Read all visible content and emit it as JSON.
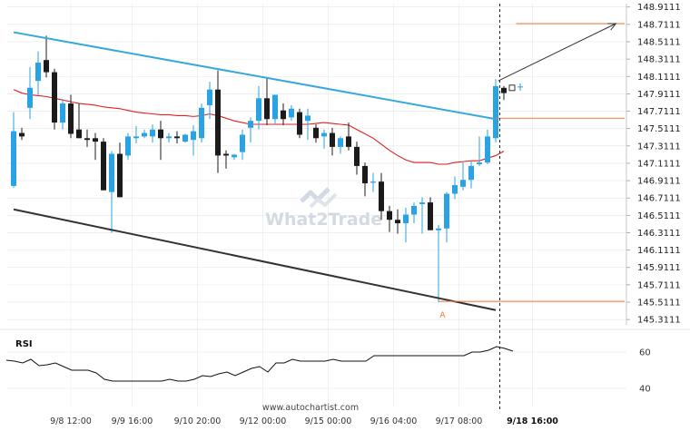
{
  "chart_data": {
    "type": "candlestick",
    "price_axis": {
      "ticks": [
        "148.9111",
        "148.7111",
        "148.5111",
        "148.3111",
        "148.1111",
        "147.9111",
        "147.7111",
        "147.5111",
        "147.3111",
        "147.1111",
        "146.9111",
        "146.7111",
        "146.5111",
        "146.3111",
        "146.1111",
        "145.9111",
        "145.7111",
        "145.5111",
        "145.3111"
      ],
      "ylim": [
        145.25,
        148.95
      ]
    },
    "time_axis": {
      "labels": [
        {
          "text": "9/8 12:00",
          "index": 7
        },
        {
          "text": "9/9 16:00",
          "index": 14.5
        },
        {
          "text": "9/10 20:00",
          "index": 22.5
        },
        {
          "text": "9/12 00:00",
          "index": 30.5
        },
        {
          "text": "9/15 00:00",
          "index": 38.5
        },
        {
          "text": "9/16 04:00",
          "index": 46.5
        },
        {
          "text": "9/17 08:00",
          "index": 54.5
        },
        {
          "text": "9/18 16:00",
          "index": 63.5,
          "bold": true
        }
      ]
    },
    "candles": [
      {
        "o": 146.85,
        "h": 147.7,
        "l": 146.83,
        "c": 147.48
      },
      {
        "o": 147.46,
        "h": 147.52,
        "l": 147.38,
        "c": 147.42
      },
      {
        "o": 147.75,
        "h": 148.22,
        "l": 147.62,
        "c": 147.98
      },
      {
        "o": 148.06,
        "h": 148.4,
        "l": 147.9,
        "c": 148.27
      },
      {
        "o": 148.3,
        "h": 148.58,
        "l": 148.1,
        "c": 148.16
      },
      {
        "o": 148.16,
        "h": 148.2,
        "l": 147.5,
        "c": 147.58
      },
      {
        "o": 147.58,
        "h": 147.85,
        "l": 147.5,
        "c": 147.8
      },
      {
        "o": 147.8,
        "h": 147.9,
        "l": 147.4,
        "c": 147.45
      },
      {
        "o": 147.5,
        "h": 147.8,
        "l": 147.4,
        "c": 147.4
      },
      {
        "o": 147.4,
        "h": 147.5,
        "l": 147.3,
        "c": 147.38
      },
      {
        "o": 147.4,
        "h": 147.46,
        "l": 147.15,
        "c": 147.36
      },
      {
        "o": 147.36,
        "h": 147.4,
        "l": 146.8,
        "c": 146.8
      },
      {
        "o": 146.78,
        "h": 147.25,
        "l": 146.31,
        "c": 147.22
      },
      {
        "o": 147.22,
        "h": 147.35,
        "l": 146.72,
        "c": 146.72
      },
      {
        "o": 147.2,
        "h": 147.46,
        "l": 147.15,
        "c": 147.42
      },
      {
        "o": 147.4,
        "h": 147.54,
        "l": 147.34,
        "c": 147.42
      },
      {
        "o": 147.42,
        "h": 147.5,
        "l": 147.4,
        "c": 147.46
      },
      {
        "o": 147.42,
        "h": 147.56,
        "l": 147.35,
        "c": 147.5
      },
      {
        "o": 147.5,
        "h": 147.6,
        "l": 147.15,
        "c": 147.4
      },
      {
        "o": 147.4,
        "h": 147.46,
        "l": 147.35,
        "c": 147.42
      },
      {
        "o": 147.42,
        "h": 147.48,
        "l": 147.34,
        "c": 147.4
      },
      {
        "o": 147.36,
        "h": 147.45,
        "l": 147.35,
        "c": 147.44
      },
      {
        "o": 147.38,
        "h": 147.55,
        "l": 147.2,
        "c": 147.48
      },
      {
        "o": 147.4,
        "h": 147.8,
        "l": 147.35,
        "c": 147.75
      },
      {
        "o": 147.78,
        "h": 148.05,
        "l": 147.62,
        "c": 147.96
      },
      {
        "o": 147.96,
        "h": 148.18,
        "l": 147.0,
        "c": 147.2
      },
      {
        "o": 147.22,
        "h": 147.26,
        "l": 147.05,
        "c": 147.2
      },
      {
        "o": 147.18,
        "h": 147.22,
        "l": 147.15,
        "c": 147.21
      },
      {
        "o": 147.24,
        "h": 147.5,
        "l": 147.15,
        "c": 147.44
      },
      {
        "o": 147.52,
        "h": 147.64,
        "l": 147.35,
        "c": 147.6
      },
      {
        "o": 147.6,
        "h": 148.0,
        "l": 147.5,
        "c": 147.86
      },
      {
        "o": 147.86,
        "h": 148.1,
        "l": 147.55,
        "c": 147.62
      },
      {
        "o": 147.62,
        "h": 147.9,
        "l": 147.56,
        "c": 147.9
      },
      {
        "o": 147.72,
        "h": 147.8,
        "l": 147.55,
        "c": 147.62
      },
      {
        "o": 147.64,
        "h": 147.78,
        "l": 147.6,
        "c": 147.74
      },
      {
        "o": 147.7,
        "h": 147.74,
        "l": 147.4,
        "c": 147.44
      },
      {
        "o": 147.6,
        "h": 147.74,
        "l": 147.38,
        "c": 147.66
      },
      {
        "o": 147.52,
        "h": 147.56,
        "l": 147.35,
        "c": 147.4
      },
      {
        "o": 147.42,
        "h": 147.5,
        "l": 147.28,
        "c": 147.46
      },
      {
        "o": 147.46,
        "h": 147.52,
        "l": 147.2,
        "c": 147.3
      },
      {
        "o": 147.3,
        "h": 147.42,
        "l": 147.22,
        "c": 147.4
      },
      {
        "o": 147.42,
        "h": 147.58,
        "l": 147.26,
        "c": 147.3
      },
      {
        "o": 147.3,
        "h": 147.36,
        "l": 146.98,
        "c": 147.08
      },
      {
        "o": 147.08,
        "h": 147.12,
        "l": 146.73,
        "c": 146.88
      },
      {
        "o": 146.9,
        "h": 147.0,
        "l": 146.78,
        "c": 146.9
      },
      {
        "o": 146.9,
        "h": 147.0,
        "l": 146.46,
        "c": 146.56
      },
      {
        "o": 146.56,
        "h": 146.62,
        "l": 146.32,
        "c": 146.46
      },
      {
        "o": 146.46,
        "h": 146.58,
        "l": 146.3,
        "c": 146.42
      },
      {
        "o": 146.42,
        "h": 146.6,
        "l": 146.2,
        "c": 146.52
      },
      {
        "o": 146.52,
        "h": 146.66,
        "l": 146.42,
        "c": 146.62
      },
      {
        "o": 146.64,
        "h": 146.72,
        "l": 146.3,
        "c": 146.66
      },
      {
        "o": 146.66,
        "h": 146.72,
        "l": 146.34,
        "c": 146.34
      },
      {
        "o": 146.34,
        "h": 146.4,
        "l": 145.51,
        "c": 146.36
      },
      {
        "o": 146.36,
        "h": 146.78,
        "l": 146.2,
        "c": 146.76
      },
      {
        "o": 146.76,
        "h": 146.96,
        "l": 146.7,
        "c": 146.86
      },
      {
        "o": 146.84,
        "h": 147.12,
        "l": 146.8,
        "c": 146.92
      },
      {
        "o": 146.92,
        "h": 147.14,
        "l": 146.82,
        "c": 147.08
      },
      {
        "o": 147.1,
        "h": 147.42,
        "l": 147.08,
        "c": 147.12
      },
      {
        "o": 147.12,
        "h": 147.5,
        "l": 147.1,
        "c": 147.42
      },
      {
        "o": 147.4,
        "h": 148.08,
        "l": 147.35,
        "c": 148.0
      },
      {
        "o": 147.98,
        "h": 148.0,
        "l": 147.84,
        "c": 147.92
      }
    ],
    "moving_average": [
      147.96,
      147.92,
      147.9,
      147.89,
      147.88,
      147.86,
      147.84,
      147.82,
      147.8,
      147.79,
      147.78,
      147.76,
      147.75,
      147.74,
      147.72,
      147.7,
      147.69,
      147.68,
      147.67,
      147.67,
      147.66,
      147.66,
      147.65,
      147.66,
      147.68,
      147.66,
      147.63,
      147.6,
      147.58,
      147.56,
      147.56,
      147.56,
      147.56,
      147.56,
      147.56,
      147.56,
      147.56,
      147.57,
      147.58,
      147.57,
      147.56,
      147.55,
      147.5,
      147.45,
      147.4,
      147.33,
      147.26,
      147.2,
      147.15,
      147.12,
      147.12,
      147.12,
      147.1,
      147.1,
      147.12,
      147.13,
      147.14,
      147.14,
      147.17,
      147.2,
      147.25
    ],
    "resistance_line": {
      "from": {
        "i": 0,
        "p": 148.62
      },
      "to": {
        "i": 59,
        "p": 147.62
      }
    },
    "support_line": {
      "from": {
        "i": 0,
        "p": 146.58
      },
      "to": {
        "i": 59,
        "p": 145.42
      }
    },
    "levels": [
      {
        "price": 148.72,
        "from_i": 61.5
      },
      {
        "price": 147.63,
        "from_i": 59
      },
      {
        "price": 145.52,
        "from_i": 52
      }
    ],
    "projection": {
      "from": {
        "i": 59.3,
        "p": 148.06
      },
      "to": {
        "i": 73.7,
        "p": 148.72
      }
    },
    "point_label": {
      "text": "A",
      "i": 52.5,
      "p": 145.44
    },
    "current_time_index": 59.5,
    "rsi": {
      "label": "RSI",
      "ticks": [
        60,
        40
      ],
      "ylim": [
        30,
        70
      ],
      "values": [
        55.5,
        55,
        54,
        56,
        52.5,
        53,
        54,
        52,
        50,
        50,
        50,
        48.5,
        45,
        44,
        44,
        44,
        44,
        44,
        44,
        44,
        45,
        44,
        44,
        45,
        47,
        46.5,
        48,
        49,
        47,
        49,
        51,
        52,
        49,
        54,
        54,
        56,
        55,
        55,
        55,
        55,
        56,
        55,
        55,
        55,
        55,
        58,
        58,
        58,
        58,
        58,
        58,
        58,
        58,
        58,
        58,
        58,
        58,
        60,
        60,
        61,
        63,
        62,
        60.5
      ]
    },
    "colors": {
      "bull": "#29a3e3",
      "bear": "#1b1b1b",
      "ma": "#e22020",
      "resistance": "#36a8de",
      "support": "#333333",
      "level": "#f07a35",
      "projection": "#333333",
      "rsi": "#111111",
      "grid": "#e6e6e6"
    }
  },
  "footer": {
    "source": "www.autochartist.com"
  },
  "watermark": {
    "text": "What2Trade"
  }
}
